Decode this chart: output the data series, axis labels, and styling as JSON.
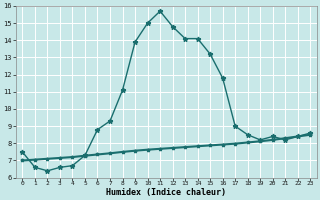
{
  "xlabel": "Humidex (Indice chaleur)",
  "bg_color": "#c8e8e8",
  "grid_color": "#b0d8d8",
  "line_color": "#1a6e6e",
  "x_values": [
    0,
    1,
    2,
    3,
    4,
    5,
    6,
    7,
    8,
    9,
    10,
    11,
    12,
    13,
    14,
    15,
    16,
    17,
    18,
    19,
    20,
    21,
    22,
    23
  ],
  "curve1": [
    7.5,
    6.6,
    6.4,
    6.6,
    6.7,
    7.3,
    8.8,
    9.3,
    11.1,
    13.9,
    15.0,
    15.7,
    14.8,
    14.1,
    14.1,
    13.2,
    11.8,
    9.0,
    8.5,
    8.2,
    8.4,
    8.2,
    8.4,
    8.6
  ],
  "curve2": [
    7.0,
    7.05,
    7.1,
    7.15,
    7.2,
    7.28,
    7.35,
    7.42,
    7.5,
    7.57,
    7.63,
    7.68,
    7.73,
    7.78,
    7.83,
    7.88,
    7.93,
    7.98,
    8.05,
    8.12,
    8.2,
    8.3,
    8.4,
    8.5
  ],
  "ylim": [
    6,
    16
  ],
  "xlim": [
    -0.5,
    23.5
  ],
  "yticks": [
    6,
    7,
    8,
    9,
    10,
    11,
    12,
    13,
    14,
    15,
    16
  ],
  "xticks": [
    0,
    1,
    2,
    3,
    4,
    5,
    6,
    7,
    8,
    9,
    10,
    11,
    12,
    13,
    14,
    15,
    16,
    17,
    18,
    19,
    20,
    21,
    22,
    23
  ]
}
